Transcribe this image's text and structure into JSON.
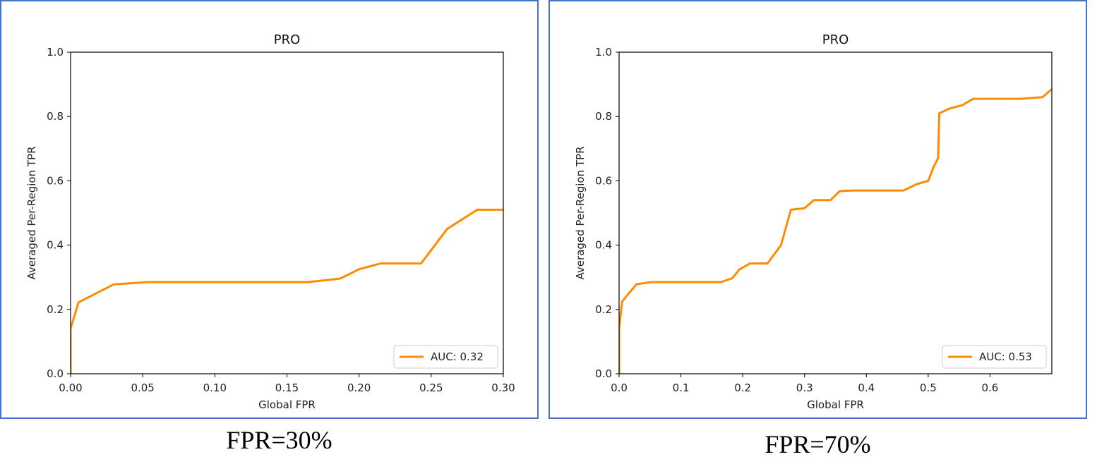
{
  "colors": {
    "series": "#ff8c00",
    "frame": "#4472c4",
    "axis": "#000000"
  },
  "captions": [
    "FPR=30%",
    "FPR=70%"
  ],
  "chart_data": [
    {
      "type": "line",
      "title": "PRO",
      "xlabel": "Global FPR",
      "ylabel": "Averaged Per-Region TPR",
      "xlim": [
        0,
        0.3
      ],
      "ylim": [
        0,
        1.0
      ],
      "xticks": [
        "0.00",
        "0.05",
        "0.10",
        "0.15",
        "0.20",
        "0.25",
        "0.30"
      ],
      "xtick_values": [
        0,
        0.05,
        0.1,
        0.15,
        0.2,
        0.25,
        0.3
      ],
      "yticks": [
        "0.0",
        "0.2",
        "0.4",
        "0.6",
        "0.8",
        "1.0"
      ],
      "ytick_values": [
        0,
        0.2,
        0.4,
        0.6,
        0.8,
        1.0
      ],
      "grid": false,
      "legend_position": "lower-right",
      "series": [
        {
          "name": "AUC: 0.32",
          "x": [
            0,
            0,
            0.0055,
            0.03,
            0.054,
            0.1,
            0.165,
            0.187,
            0.2,
            0.215,
            0.243,
            0.261,
            0.282,
            0.3
          ],
          "y": [
            0,
            0.14,
            0.222,
            0.278,
            0.285,
            0.285,
            0.285,
            0.296,
            0.325,
            0.343,
            0.343,
            0.45,
            0.51,
            0.51
          ]
        }
      ]
    },
    {
      "type": "line",
      "title": "PRO",
      "xlabel": "Global FPR",
      "ylabel": "Averaged Per-Region TPR",
      "xlim": [
        0,
        0.7
      ],
      "ylim": [
        0,
        1.0
      ],
      "xticks": [
        "0.0",
        "0.1",
        "0.2",
        "0.3",
        "0.4",
        "0.5",
        "0.6"
      ],
      "xtick_values": [
        0,
        0.1,
        0.2,
        0.3,
        0.4,
        0.5,
        0.6
      ],
      "yticks": [
        "0.0",
        "0.2",
        "0.4",
        "0.6",
        "0.8",
        "1.0"
      ],
      "ytick_values": [
        0,
        0.2,
        0.4,
        0.6,
        0.8,
        1.0
      ],
      "grid": false,
      "legend_position": "lower-right",
      "series": [
        {
          "name": "AUC: 0.53",
          "x": [
            0,
            0,
            0.005,
            0.028,
            0.052,
            0.1,
            0.165,
            0.183,
            0.195,
            0.212,
            0.24,
            0.262,
            0.278,
            0.3,
            0.315,
            0.342,
            0.357,
            0.38,
            0.46,
            0.482,
            0.5,
            0.508,
            0.516,
            0.518,
            0.535,
            0.555,
            0.573,
            0.65,
            0.685,
            0.7
          ],
          "y": [
            0,
            0.14,
            0.225,
            0.278,
            0.285,
            0.285,
            0.285,
            0.297,
            0.325,
            0.343,
            0.343,
            0.4,
            0.51,
            0.515,
            0.54,
            0.54,
            0.568,
            0.57,
            0.57,
            0.59,
            0.6,
            0.64,
            0.67,
            0.81,
            0.825,
            0.835,
            0.855,
            0.855,
            0.86,
            0.885
          ]
        }
      ]
    }
  ]
}
